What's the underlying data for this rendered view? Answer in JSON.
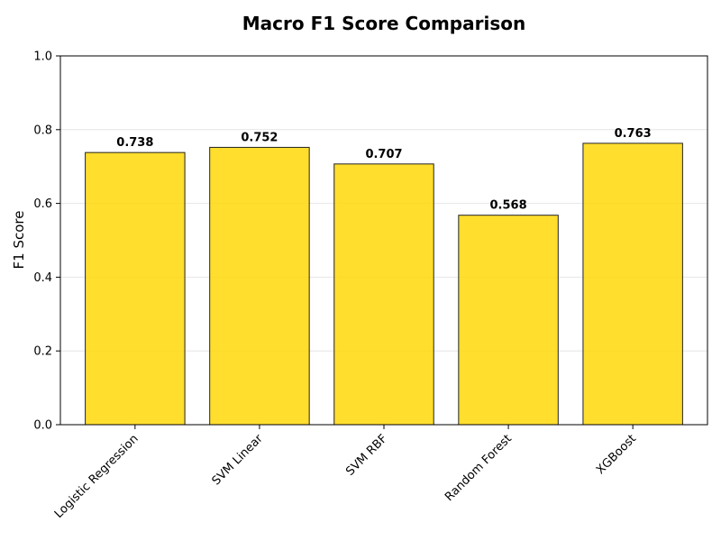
{
  "chart_data": {
    "type": "bar",
    "title": "Macro F1 Score Comparison",
    "xlabel": "",
    "ylabel": "F1 Score",
    "categories": [
      "Logistic Regression",
      "SVM Linear",
      "SVM RBF",
      "Random Forest",
      "XGBoost"
    ],
    "values": [
      0.738,
      0.752,
      0.707,
      0.568,
      0.763
    ],
    "data_labels": [
      "0.738",
      "0.752",
      "0.707",
      "0.568",
      "0.763"
    ],
    "ylim": [
      0,
      1.0
    ],
    "yticks": [
      0.0,
      0.2,
      0.4,
      0.6,
      0.8,
      1.0
    ],
    "ytick_labels": [
      "0.0",
      "0.2",
      "0.4",
      "0.6",
      "0.8",
      "1.0"
    ],
    "grid": "horizontal",
    "bar_color": "#FFD700",
    "bar_edge_color": "#222222"
  }
}
